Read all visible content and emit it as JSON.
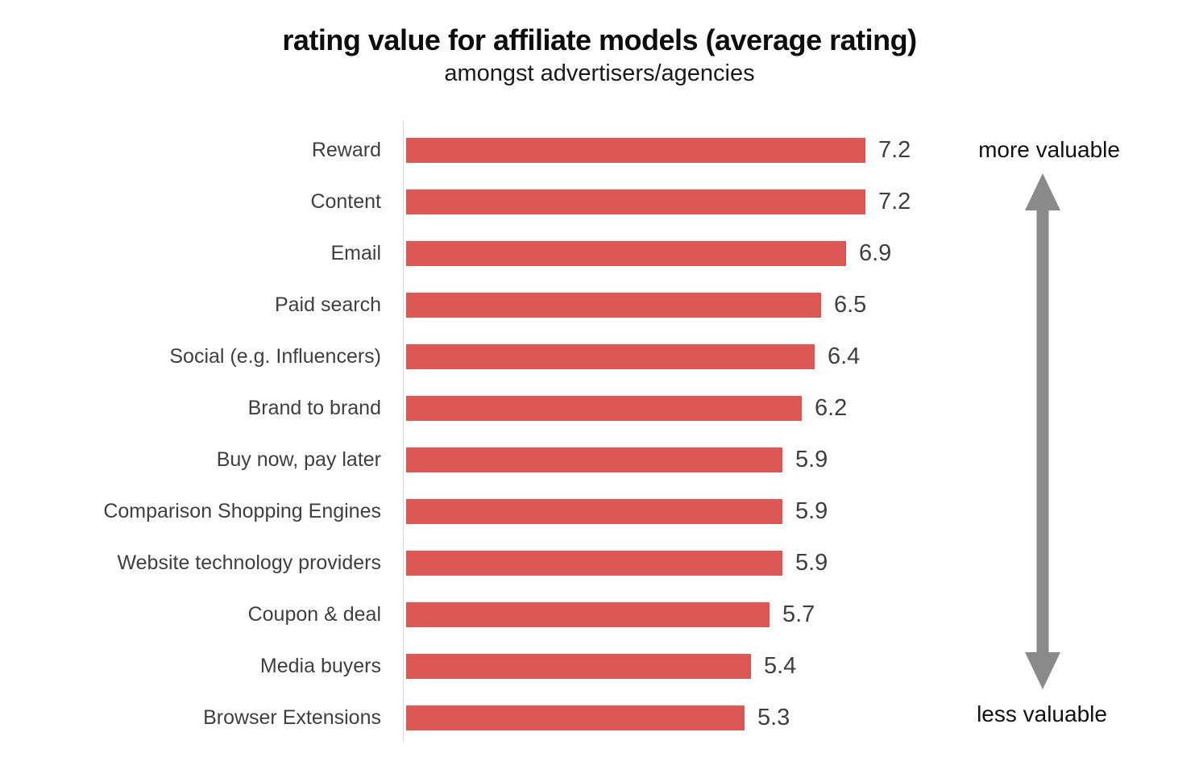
{
  "header": {
    "title": "rating value for affiliate models (average rating)",
    "subtitle": "amongst advertisers/agencies"
  },
  "chart_data": {
    "type": "bar",
    "orientation": "horizontal",
    "title": "rating value for affiliate models (average rating)",
    "subtitle": "amongst advertisers/agencies",
    "categories": [
      "Reward",
      "Content",
      "Email",
      "Paid search",
      "Social (e.g. Influencers)",
      "Brand to brand",
      "Buy now, pay later",
      "Comparison Shopping Engines",
      "Website technology providers",
      "Coupon & deal",
      "Media buyers",
      "Browser Extensions"
    ],
    "values": [
      7.2,
      7.2,
      6.9,
      6.5,
      6.4,
      6.2,
      5.9,
      5.9,
      5.9,
      5.7,
      5.4,
      5.3
    ],
    "xlim": [
      0,
      7.6
    ],
    "grid": false,
    "legend": false,
    "bar_color": "#da5753",
    "axis_line_color": "#d9d9d9",
    "value_labels_shown": true
  },
  "annotation": {
    "top_label": "more valuable",
    "bottom_label": "less valuable",
    "arrow_color": "#8a8a8a"
  }
}
